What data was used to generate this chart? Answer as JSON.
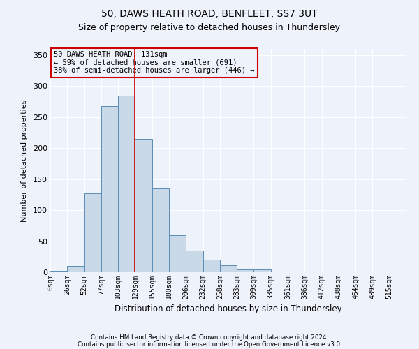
{
  "title1": "50, DAWS HEATH ROAD, BENFLEET, SS7 3UT",
  "title2": "Size of property relative to detached houses in Thundersley",
  "xlabel": "Distribution of detached houses by size in Thundersley",
  "ylabel": "Number of detached properties",
  "footer1": "Contains HM Land Registry data © Crown copyright and database right 2024.",
  "footer2": "Contains public sector information licensed under the Open Government Licence v3.0.",
  "bar_labels": [
    "0sqm",
    "26sqm",
    "52sqm",
    "77sqm",
    "103sqm",
    "129sqm",
    "155sqm",
    "180sqm",
    "206sqm",
    "232sqm",
    "258sqm",
    "283sqm",
    "309sqm",
    "335sqm",
    "361sqm",
    "386sqm",
    "412sqm",
    "438sqm",
    "464sqm",
    "489sqm",
    "515sqm"
  ],
  "bar_heights": [
    2,
    10,
    127,
    268,
    285,
    215,
    135,
    60,
    35,
    20,
    11,
    5,
    5,
    1,
    1,
    0,
    0,
    0,
    0,
    1,
    0
  ],
  "bar_color": "#c9d9e8",
  "bar_edge_color": "#5b8db8",
  "vline_color": "#cc0000",
  "annotation_text": "50 DAWS HEATH ROAD: 131sqm\n← 59% of detached houses are smaller (691)\n38% of semi-detached houses are larger (446) →",
  "annotation_box_color": "#cc0000",
  "ylim": [
    0,
    360
  ],
  "yticks": [
    0,
    50,
    100,
    150,
    200,
    250,
    300,
    350
  ],
  "background_color": "#eef2fa",
  "grid_color": "#ffffff",
  "title1_fontsize": 10,
  "title2_fontsize": 9,
  "vline_bar_index": 5
}
